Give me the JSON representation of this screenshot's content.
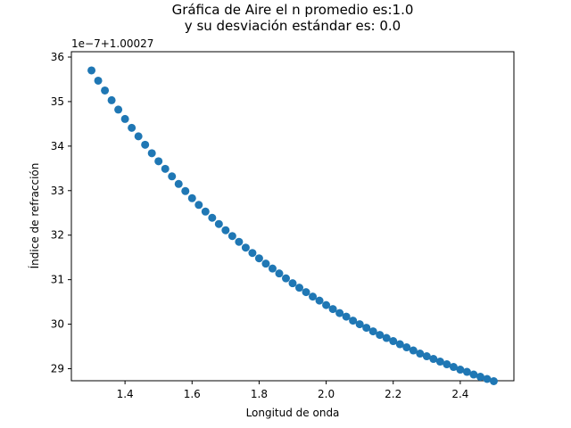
{
  "chart_data": {
    "type": "scatter",
    "title": "Gráfica de Aire el n promedio es:1.0\ny su desviación estándar es: 0.0",
    "xlabel": "Longitud de onda",
    "ylabel": "Índice de refracción",
    "y_offset_label": "1e−7+1.00027",
    "xlim": [
      1.24,
      2.56
    ],
    "ylim": [
      28.73,
      36.12
    ],
    "x_ticks": [
      1.4,
      1.6,
      1.8,
      2.0,
      2.2,
      2.4
    ],
    "x_tick_labels": [
      "1.4",
      "1.6",
      "1.8",
      "2.0",
      "2.2",
      "2.4"
    ],
    "y_ticks": [
      29,
      30,
      31,
      32,
      33,
      34,
      35,
      36
    ],
    "y_tick_labels": [
      "29",
      "30",
      "31",
      "32",
      "33",
      "34",
      "35",
      "36"
    ],
    "grid": false,
    "series": [
      {
        "color": "#1f77b4",
        "x": [
          1.3,
          1.32,
          1.34,
          1.36,
          1.38,
          1.4,
          1.42,
          1.44,
          1.46,
          1.48,
          1.5,
          1.52,
          1.54,
          1.56,
          1.58,
          1.6,
          1.62,
          1.64,
          1.66,
          1.68,
          1.7,
          1.72,
          1.74,
          1.76,
          1.78,
          1.8,
          1.82,
          1.84,
          1.86,
          1.88,
          1.9,
          1.92,
          1.94,
          1.96,
          1.98,
          2.0,
          2.02,
          2.04,
          2.06,
          2.08,
          2.1,
          2.12,
          2.14,
          2.16,
          2.18,
          2.2,
          2.22,
          2.24,
          2.26,
          2.28,
          2.3,
          2.32,
          2.34,
          2.36,
          2.38,
          2.4,
          2.42,
          2.44,
          2.46,
          2.48,
          2.5
        ],
        "y": [
          35.7,
          35.47,
          35.25,
          35.03,
          34.82,
          34.61,
          34.41,
          34.22,
          34.03,
          33.84,
          33.66,
          33.49,
          33.32,
          33.15,
          32.99,
          32.83,
          32.68,
          32.53,
          32.39,
          32.25,
          32.11,
          31.98,
          31.85,
          31.72,
          31.6,
          31.48,
          31.36,
          31.25,
          31.14,
          31.03,
          30.92,
          30.82,
          30.72,
          30.62,
          30.53,
          30.43,
          30.34,
          30.25,
          30.17,
          30.08,
          30.0,
          29.92,
          29.84,
          29.76,
          29.69,
          29.62,
          29.55,
          29.48,
          29.41,
          29.34,
          29.28,
          29.22,
          29.16,
          29.1,
          29.04,
          28.98,
          28.93,
          28.87,
          28.82,
          28.77,
          28.72
        ]
      }
    ]
  }
}
